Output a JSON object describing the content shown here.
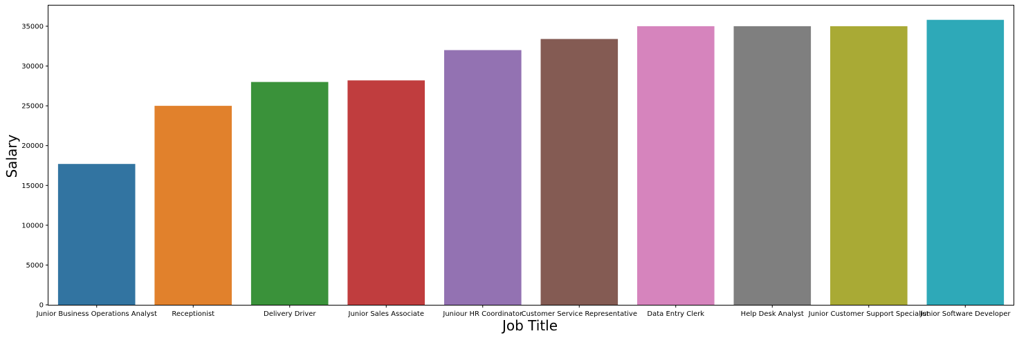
{
  "chart_data": {
    "type": "bar",
    "title": "",
    "xlabel": "Job Title",
    "ylabel": "Salary",
    "ylim": [
      0,
      37600
    ],
    "yticks": [
      0,
      5000,
      10000,
      15000,
      20000,
      25000,
      30000,
      35000
    ],
    "grid": false,
    "categories": [
      "Junior Business Operations Analyst",
      "Receptionist",
      "Delivery Driver",
      "Junior Sales Associate",
      "Juniour HR Coordinator",
      "Customer Service Representative",
      "Data Entry Clerk",
      "Help Desk Analyst",
      "Junior Customer Support Specialist",
      "Junior Software Developer"
    ],
    "values": [
      17700,
      25000,
      28000,
      28200,
      32000,
      33400,
      35000,
      35000,
      35000,
      35800
    ],
    "colors": [
      "#3274a1",
      "#e1812c",
      "#3a923a",
      "#c03d3e",
      "#9372b2",
      "#845b53",
      "#d684bd",
      "#7f7f7f",
      "#a9aa35",
      "#2ea9b8"
    ]
  }
}
